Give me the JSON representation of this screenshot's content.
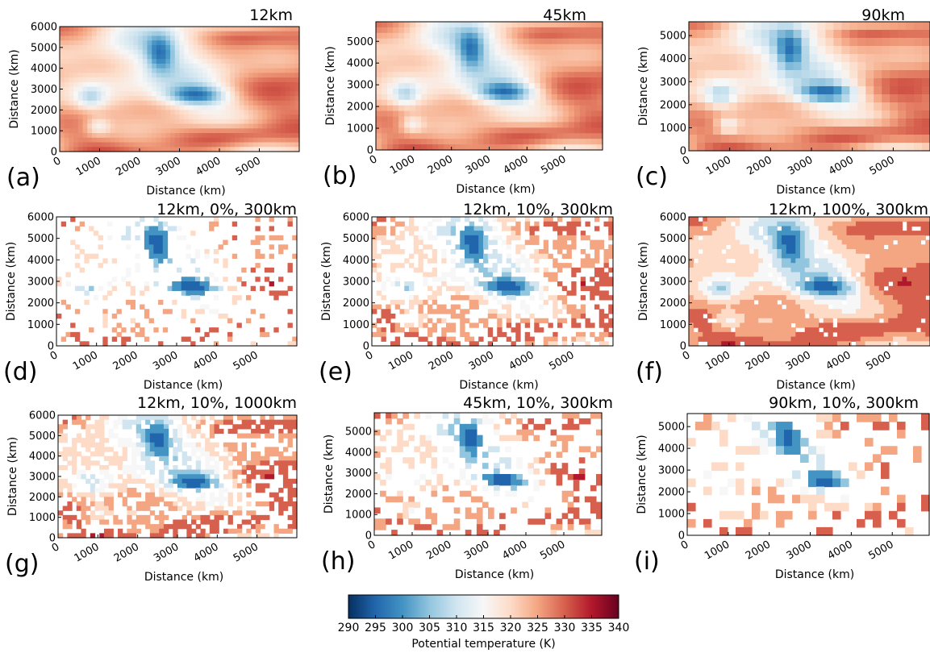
{
  "chart_data": [
    {
      "panel": "(a)",
      "title": "12km",
      "type": "heatmap",
      "xlabel": "Distance (km)",
      "ylabel": "Distance (km)",
      "x_ticks": [
        0,
        1000,
        2000,
        3000,
        4000,
        5000
      ],
      "y_ticks": [
        0,
        1000,
        2000,
        3000,
        4000,
        5000,
        6000
      ],
      "xlim": [
        0,
        6000
      ],
      "ylim": [
        0,
        6000
      ],
      "style": "continuous",
      "resolution": "12km"
    },
    {
      "panel": "(b)",
      "title": "45km",
      "type": "heatmap",
      "xlabel": "Distance (km)",
      "ylabel": "Distance (km)",
      "x_ticks": [
        0,
        1000,
        2000,
        3000,
        4000,
        5000
      ],
      "y_ticks": [
        0,
        1000,
        2000,
        3000,
        4000,
        5000
      ],
      "xlim": [
        0,
        6000
      ],
      "ylim": [
        0,
        5900
      ],
      "style": "continuous",
      "resolution": "45km"
    },
    {
      "panel": "(c)",
      "title": "90km",
      "type": "heatmap",
      "xlabel": "Distance (km)",
      "ylabel": "Distance (km)",
      "x_ticks": [
        0,
        1000,
        2000,
        3000,
        4000,
        5000
      ],
      "y_ticks": [
        0,
        1000,
        2000,
        3000,
        4000,
        5000
      ],
      "xlim": [
        0,
        5900
      ],
      "ylim": [
        0,
        5600
      ],
      "style": "continuous",
      "resolution": "90km"
    },
    {
      "panel": "(d)",
      "title": "12km, 0%, 300km",
      "type": "heatmap",
      "xlabel": "Distance (km)",
      "ylabel": "Distance (km)",
      "x_ticks": [
        0,
        1000,
        2000,
        3000,
        4000,
        5000
      ],
      "y_ticks": [
        0,
        1000,
        2000,
        3000,
        4000,
        5000,
        6000
      ],
      "xlim": [
        0,
        6000
      ],
      "ylim": [
        0,
        6000
      ],
      "style": "masked",
      "coverage": 0.18,
      "resolution": "12km"
    },
    {
      "panel": "(e)",
      "title": "12km, 10%, 300km",
      "type": "heatmap",
      "xlabel": "Distance (km)",
      "ylabel": "Distance (km)",
      "x_ticks": [
        0,
        1000,
        2000,
        3000,
        4000,
        5000
      ],
      "y_ticks": [
        0,
        1000,
        2000,
        3000,
        4000,
        5000,
        6000
      ],
      "xlim": [
        0,
        6000
      ],
      "ylim": [
        0,
        6000
      ],
      "style": "masked",
      "coverage": 0.45,
      "resolution": "12km"
    },
    {
      "panel": "(f)",
      "title": "12km, 100%, 300km",
      "type": "heatmap",
      "xlabel": "Distance (km)",
      "ylabel": "Distance (km)",
      "x_ticks": [
        0,
        1000,
        2000,
        3000,
        4000,
        5000
      ],
      "y_ticks": [
        0,
        1000,
        2000,
        3000,
        4000,
        5000,
        6000
      ],
      "xlim": [
        0,
        6000
      ],
      "ylim": [
        0,
        6000
      ],
      "style": "masked",
      "coverage": 0.95,
      "resolution": "12km"
    },
    {
      "panel": "(g)",
      "title": "12km, 10%, 1000km",
      "type": "heatmap",
      "xlabel": "Distance (km)",
      "ylabel": "Distance (km)",
      "x_ticks": [
        0,
        1000,
        2000,
        3000,
        4000,
        5000
      ],
      "y_ticks": [
        0,
        1000,
        2000,
        3000,
        4000,
        5000,
        6000
      ],
      "xlim": [
        0,
        6000
      ],
      "ylim": [
        0,
        6000
      ],
      "style": "masked",
      "coverage": 0.55,
      "resolution": "12km"
    },
    {
      "panel": "(h)",
      "title": "45km, 10%, 300km",
      "type": "heatmap",
      "xlabel": "Distance (km)",
      "ylabel": "Distance (km)",
      "x_ticks": [
        0,
        1000,
        2000,
        3000,
        4000,
        5000
      ],
      "y_ticks": [
        0,
        1000,
        2000,
        3000,
        4000,
        5000
      ],
      "xlim": [
        0,
        6000
      ],
      "ylim": [
        0,
        5900
      ],
      "style": "masked",
      "coverage": 0.33,
      "resolution": "45km"
    },
    {
      "panel": "(i)",
      "title": "90km, 10%, 300km",
      "type": "heatmap",
      "xlabel": "Distance (km)",
      "ylabel": "Distance (km)",
      "x_ticks": [
        0,
        1000,
        2000,
        3000,
        4000,
        5000
      ],
      "y_ticks": [
        0,
        1000,
        2000,
        3000,
        4000,
        5000
      ],
      "xlim": [
        0,
        5900
      ],
      "ylim": [
        0,
        5600
      ],
      "style": "masked",
      "coverage": 0.3,
      "resolution": "90km"
    }
  ],
  "colorbar": {
    "label": "Potential temperature (K)",
    "min": 290,
    "max": 340,
    "ticks": [
      290,
      295,
      300,
      305,
      310,
      315,
      320,
      325,
      330,
      335,
      340
    ],
    "colormap": "RdBu_r",
    "stops": [
      "#053061",
      "#2166ac",
      "#4393c3",
      "#92c5de",
      "#d1e5f0",
      "#f7f7f7",
      "#fddbc7",
      "#f4a582",
      "#d6604d",
      "#b2182b",
      "#67001f"
    ]
  }
}
